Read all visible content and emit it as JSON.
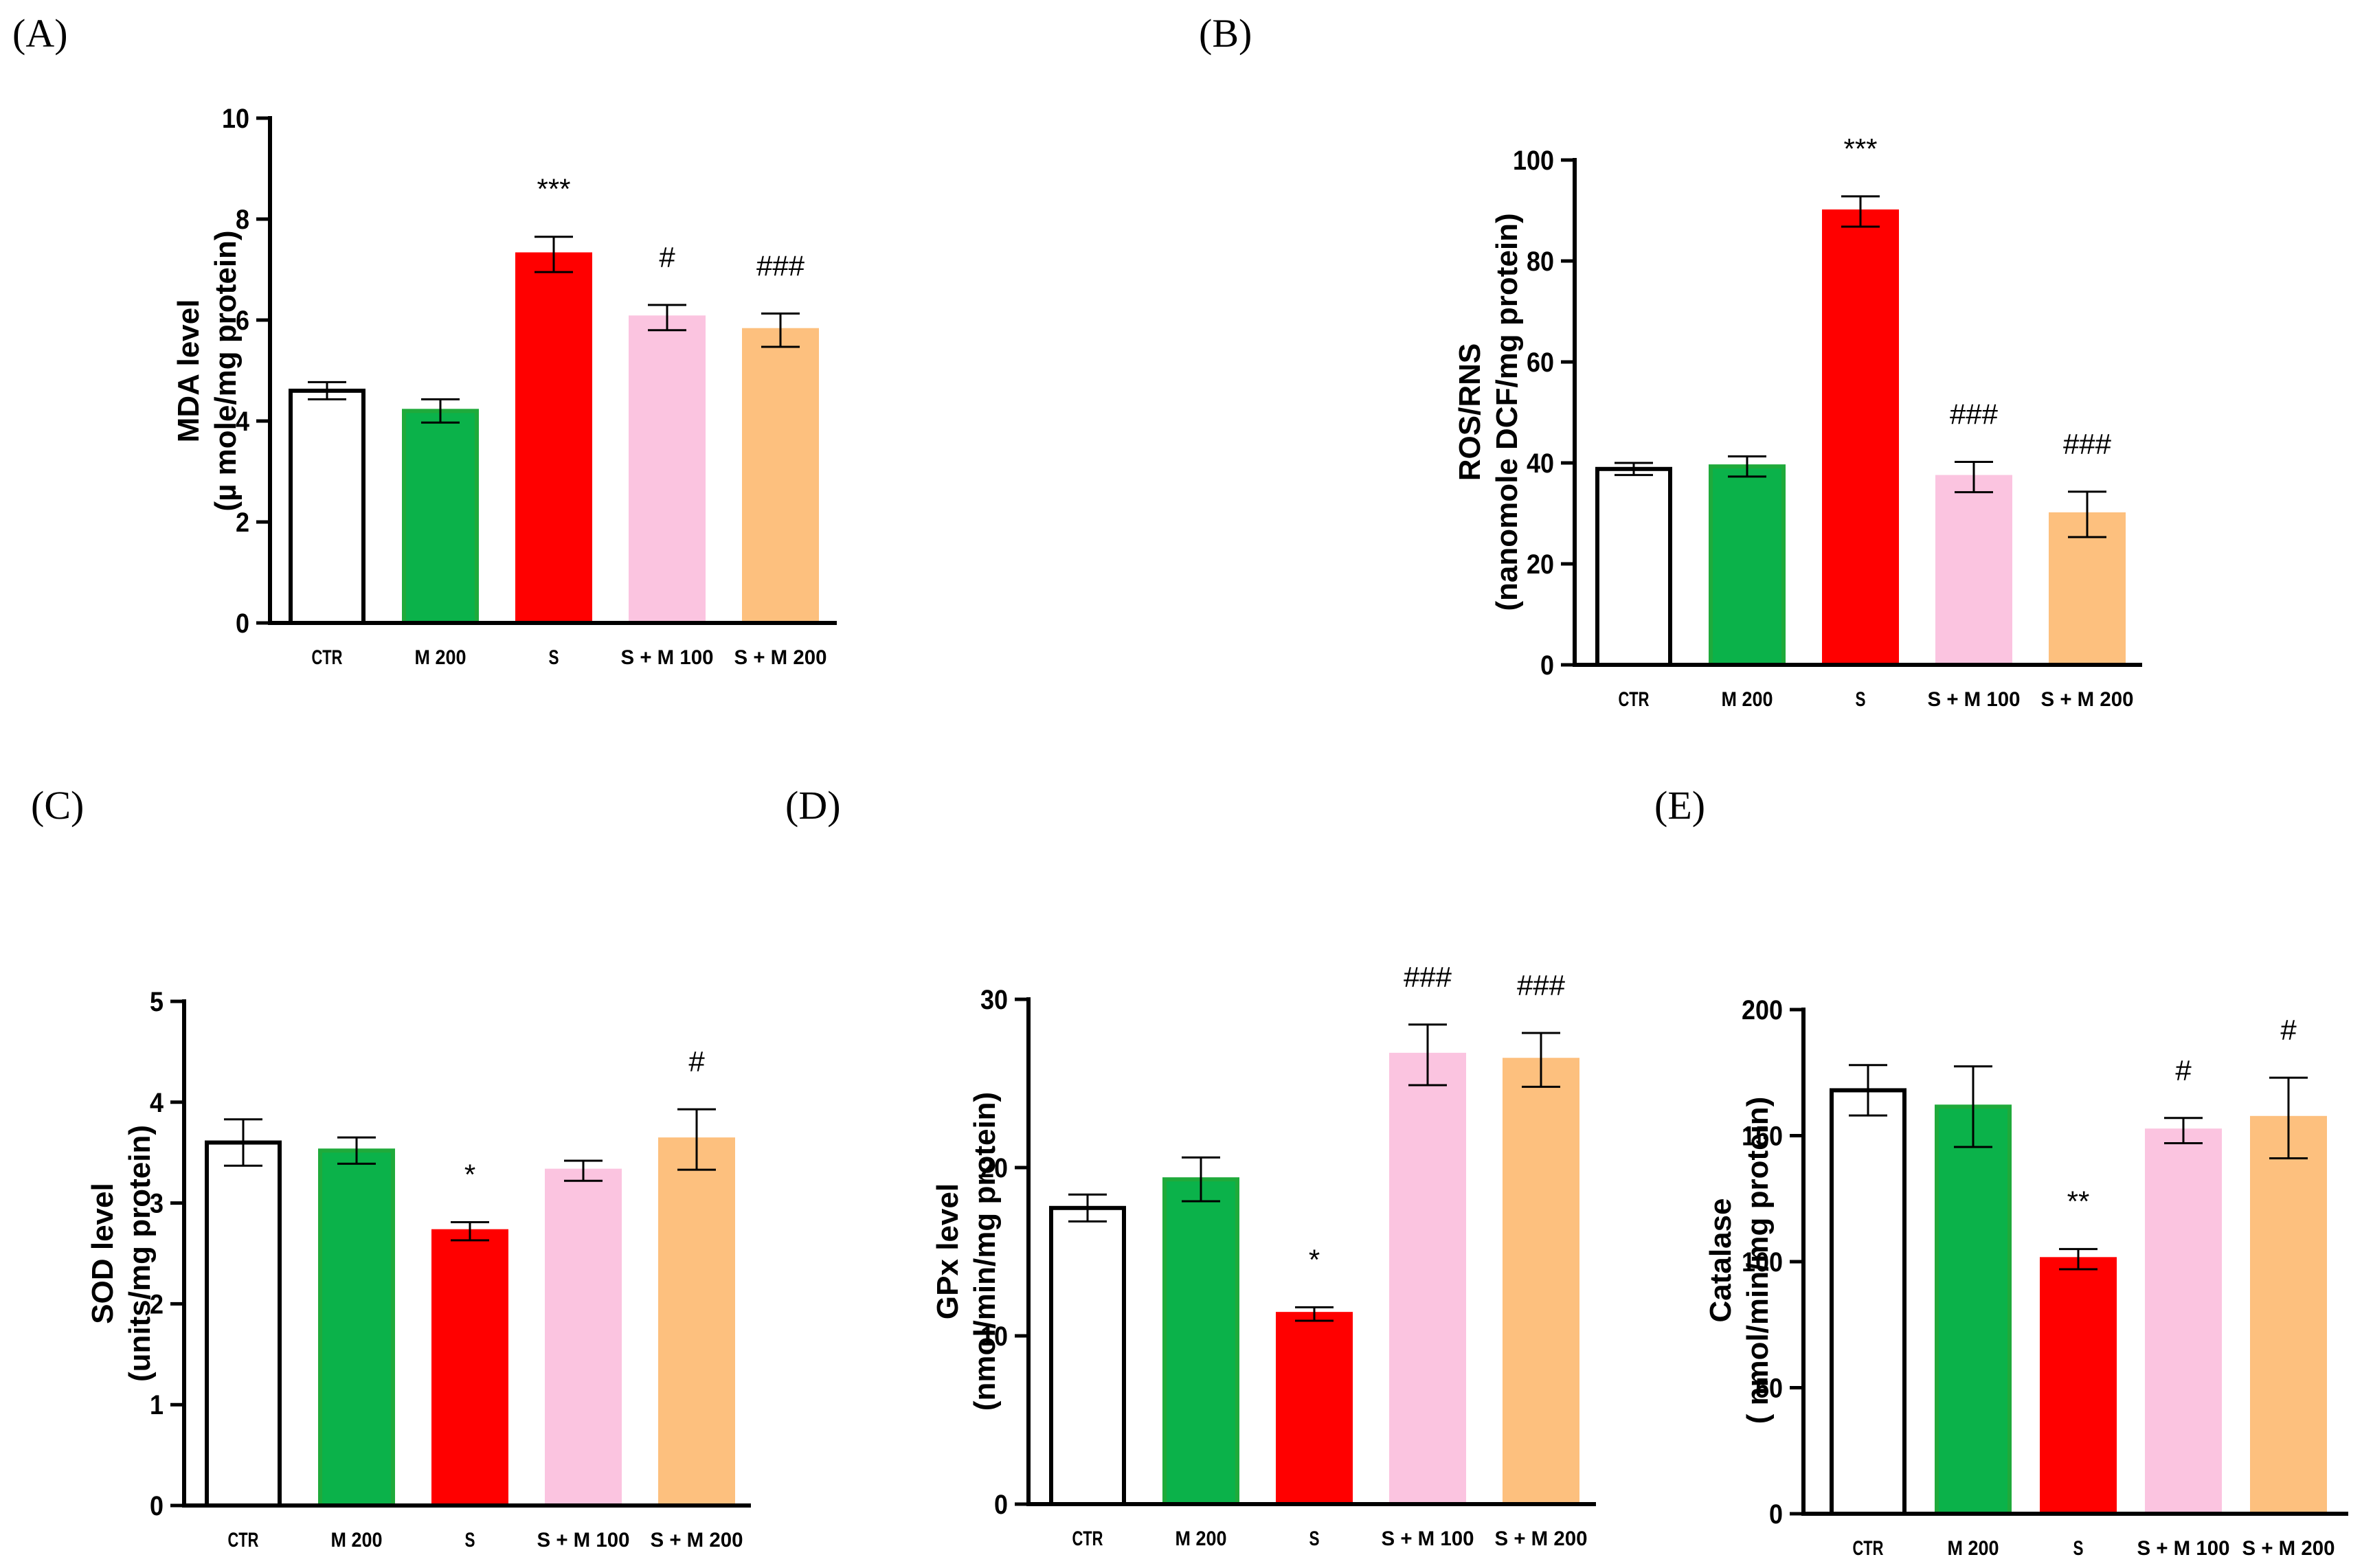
{
  "chart_data": [
    {
      "panel": "(A)",
      "type": "bar",
      "categories": [
        "CTR",
        "M 200",
        "S",
        "S + M 100",
        "S + M 200"
      ],
      "values": [
        4.6,
        4.2,
        7.3,
        6.05,
        5.8
      ],
      "errors": [
        0.17,
        0.23,
        0.35,
        0.25,
        0.33
      ],
      "annotations": [
        "",
        "",
        "***",
        "#",
        "###"
      ],
      "ylabel": [
        "MDA level",
        "(µ mole/mg protein)"
      ],
      "ylim": [
        0,
        10
      ],
      "yticks": [
        "0",
        "2",
        "4",
        "6",
        "8",
        "10"
      ],
      "colors": [
        "#ffffff",
        "#0bb24a",
        "#ff0000",
        "#fbc4e0",
        "#fdc07e"
      ],
      "edges": [
        "#000000",
        "#1faa3b",
        "#ff0000",
        "#fbc4e0",
        "#fdc07e"
      ]
    },
    {
      "panel": "(B)",
      "type": "bar",
      "categories": [
        "CTR",
        "M 200",
        "S",
        "S + M 100",
        "S + M 200"
      ],
      "values": [
        38.8,
        39.3,
        89.8,
        37.2,
        29.8
      ],
      "errors": [
        1.2,
        2.0,
        3.0,
        3.0,
        4.5
      ],
      "annotations": [
        "",
        "",
        "***",
        "###",
        "###"
      ],
      "ylabel": [
        "ROS/RNS",
        "(nanomole DCF/mg protein)"
      ],
      "ylim": [
        0,
        100
      ],
      "yticks": [
        "0",
        "20",
        "40",
        "60",
        "80",
        "100"
      ],
      "colors": [
        "#ffffff",
        "#0bb24a",
        "#ff0000",
        "#fbc4e0",
        "#fdc07e"
      ],
      "edges": [
        "#000000",
        "#1faa3b",
        "#ff0000",
        "#fbc4e0",
        "#fdc07e"
      ]
    },
    {
      "panel": "(C)",
      "type": "bar",
      "categories": [
        "CTR",
        "M 200",
        "S",
        "S + M 100",
        "S + M 200"
      ],
      "values": [
        3.6,
        3.52,
        2.72,
        3.32,
        3.63
      ],
      "errors": [
        0.23,
        0.13,
        0.09,
        0.1,
        0.3
      ],
      "annotations": [
        "",
        "",
        "*",
        "",
        "#"
      ],
      "ylabel": [
        "SOD level",
        "(units/mg protein)"
      ],
      "ylim": [
        0,
        5
      ],
      "yticks": [
        "0",
        "1",
        "2",
        "3",
        "4",
        "5"
      ],
      "colors": [
        "#ffffff",
        "#0bb24a",
        "#ff0000",
        "#fbc4e0",
        "#fdc07e"
      ],
      "edges": [
        "#000000",
        "#1faa3b",
        "#ff0000",
        "#fbc4e0",
        "#fdc07e"
      ]
    },
    {
      "panel": "(D)",
      "type": "bar",
      "categories": [
        "CTR",
        "M 200",
        "S",
        "S + M 100",
        "S + M 200"
      ],
      "values": [
        17.6,
        19.3,
        11.3,
        26.7,
        26.4
      ],
      "errors": [
        0.8,
        1.3,
        0.4,
        1.8,
        1.6
      ],
      "annotations": [
        "",
        "",
        "*",
        "###",
        "###"
      ],
      "ylabel": [
        "GPx level",
        "(nmol/min/mg protein)"
      ],
      "ylim": [
        0,
        30
      ],
      "yticks": [
        "0",
        "10",
        "20",
        "30"
      ],
      "colors": [
        "#ffffff",
        "#0bb24a",
        "#ff0000",
        "#fbc4e0",
        "#fdc07e"
      ],
      "edges": [
        "#000000",
        "#1faa3b",
        "#ff0000",
        "#fbc4e0",
        "#fdc07e"
      ]
    },
    {
      "panel": "(E)",
      "type": "bar",
      "categories": [
        "CTR",
        "M 200",
        "S",
        "S + M 100",
        "S + M 200"
      ],
      "values": [
        168,
        161.5,
        101,
        152,
        157
      ],
      "errors": [
        10,
        16,
        4,
        5,
        16
      ],
      "annotations": [
        "",
        "",
        "**",
        "#",
        "#"
      ],
      "ylabel": [
        "Catalase",
        "( nmol/min/mg protein)"
      ],
      "ylim": [
        0,
        200
      ],
      "yticks": [
        "0",
        "50",
        "100",
        "150",
        "200"
      ],
      "colors": [
        "#ffffff",
        "#0bb24a",
        "#ff0000",
        "#fbc4e0",
        "#fdc07e"
      ],
      "edges": [
        "#000000",
        "#1faa3b",
        "#ff0000",
        "#fbc4e0",
        "#fdc07e"
      ]
    }
  ]
}
